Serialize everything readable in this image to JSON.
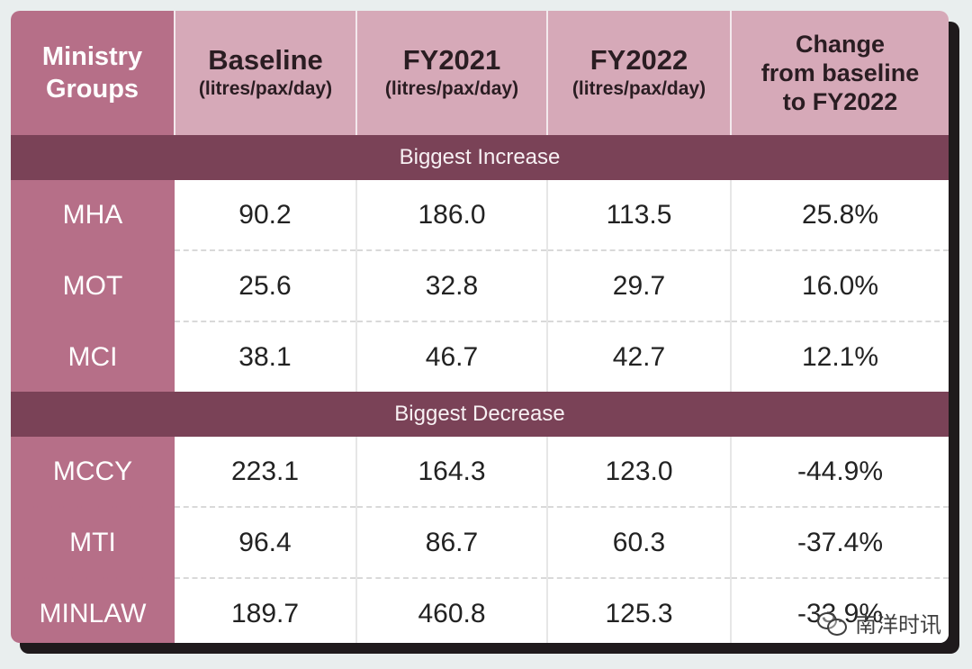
{
  "table": {
    "headers": {
      "group": [
        "Ministry",
        "Groups"
      ],
      "baseline": {
        "title": "Baseline",
        "unit": "(litres/pax/day)"
      },
      "fy2021": {
        "title": "FY2021",
        "unit": "(litres/pax/day)"
      },
      "fy2022": {
        "title": "FY2022",
        "unit": "(litres/pax/day)"
      },
      "change": [
        "Change",
        "from baseline",
        "to FY2022"
      ]
    },
    "sections": [
      {
        "label": "Biggest Increase",
        "rows": [
          {
            "ministry": "MHA",
            "baseline": "90.2",
            "fy2021": "186.0",
            "fy2022": "113.5",
            "change": "25.8%"
          },
          {
            "ministry": "MOT",
            "baseline": "25.6",
            "fy2021": "32.8",
            "fy2022": "29.7",
            "change": "16.0%"
          },
          {
            "ministry": "MCI",
            "baseline": "38.1",
            "fy2021": "46.7",
            "fy2022": "42.7",
            "change": "12.1%"
          }
        ]
      },
      {
        "label": "Biggest Decrease",
        "rows": [
          {
            "ministry": "MCCY",
            "baseline": "223.1",
            "fy2021": "164.3",
            "fy2022": "123.0",
            "change": "-44.9%"
          },
          {
            "ministry": "MTI",
            "baseline": "96.4",
            "fy2021": "86.7",
            "fy2022": "60.3",
            "change": "-37.4%"
          },
          {
            "ministry": "MINLAW",
            "baseline": "189.7",
            "fy2021": "460.8",
            "fy2022": "125.3",
            "change": "-33.9%"
          }
        ]
      }
    ]
  },
  "watermark": {
    "icon": "chat-bubbles-icon",
    "text": "南洋时讯"
  },
  "colors": {
    "background": "#e9eeee",
    "ministry_column": "#b66f88",
    "header_cells": "#d6a9b8",
    "section_bar": "#7a4257",
    "shadow": "#1f1a1c"
  }
}
